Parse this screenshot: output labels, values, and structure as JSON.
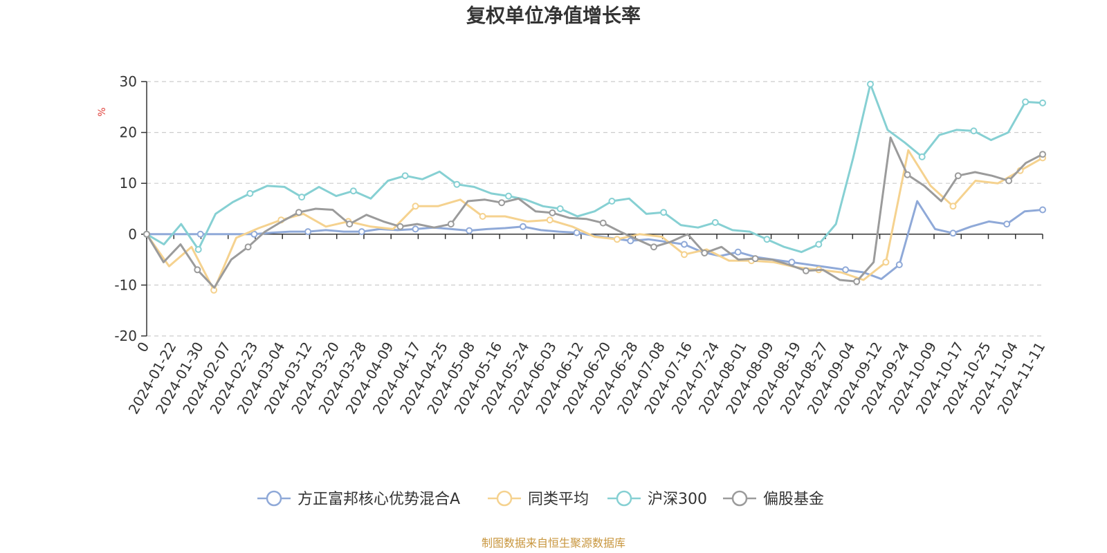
{
  "chart_data": {
    "type": "line",
    "title": "复权单位净值增长率",
    "ylabel": "%",
    "ylim": [
      -20,
      30
    ],
    "yticks": [
      "30",
      "20",
      "10",
      "0",
      "-10",
      "-20"
    ],
    "x_tick_labels": [
      "0",
      "2024-01-22",
      "2024-01-30",
      "2024-02-07",
      "2024-02-23",
      "2024-03-04",
      "2024-03-12",
      "2024-03-20",
      "2024-03-28",
      "2024-04-09",
      "2024-04-17",
      "2024-04-25",
      "2024-05-08",
      "2024-05-16",
      "2024-05-24",
      "2024-06-03",
      "2024-06-12",
      "2024-06-20",
      "2024-06-28",
      "2024-07-08",
      "2024-07-16",
      "2024-07-24",
      "2024-08-01",
      "2024-08-09",
      "2024-08-19",
      "2024-08-27",
      "2024-09-04",
      "2024-09-12",
      "2024-09-24",
      "2024-10-09",
      "2024-10-17",
      "2024-10-25",
      "2024-11-04",
      "2024-11-11"
    ],
    "series": [
      {
        "name": "方正富邦核心优势混合A",
        "color": "#8fa9d8",
        "values": [
          0,
          0,
          0,
          0,
          0,
          0,
          0,
          0.3,
          0.5,
          0.5,
          0.8,
          0.5,
          0.5,
          1.0,
          0.8,
          1.0,
          1.3,
          1.0,
          0.7,
          1.0,
          1.2,
          1.5,
          0.8,
          0.5,
          0.3,
          -0.3,
          -0.8,
          -1.3,
          -1.0,
          -1.5,
          -2.0,
          -3.5,
          -4.3,
          -3.5,
          -4.5,
          -5.0,
          -5.5,
          -6.0,
          -6.5,
          -7.0,
          -7.5,
          -8.8,
          -6.0,
          6.5,
          1.0,
          0.2,
          1.5,
          2.5,
          2.0,
          4.5,
          4.8
        ]
      },
      {
        "name": "同类平均",
        "color": "#f5d28f",
        "values": [
          0,
          -6.3,
          -2.5,
          -11.0,
          -0.7,
          1.2,
          2.8,
          4.0,
          1.5,
          2.5,
          1.5,
          1.0,
          5.5,
          5.5,
          6.8,
          3.5,
          3.5,
          2.5,
          2.8,
          1.5,
          -0.5,
          -1.0,
          0,
          -0.5,
          -4.0,
          -3.0,
          -5.2,
          -5.2,
          -5.5,
          -6.5,
          -7.0,
          -7.5,
          -9.0,
          -5.5,
          16.5,
          9.5,
          5.5,
          10.5,
          10.0,
          12.5,
          15.0
        ]
      },
      {
        "name": "沪深300",
        "color": "#86d0d3",
        "values": [
          0,
          -2.0,
          2.0,
          -3.0,
          4.0,
          6.3,
          8.0,
          9.5,
          9.3,
          7.3,
          9.3,
          7.5,
          8.5,
          7.0,
          10.5,
          11.5,
          10.8,
          12.3,
          9.8,
          9.3,
          8.0,
          7.5,
          6.8,
          5.5,
          5.0,
          3.5,
          4.5,
          6.5,
          7.0,
          4.0,
          4.3,
          1.8,
          1.3,
          2.3,
          0.8,
          0.5,
          -1.0,
          -2.5,
          -3.5,
          -2.0,
          2.0,
          15.0,
          29.5,
          20.5,
          18.0,
          15.2,
          19.5,
          20.5,
          20.3,
          18.5,
          20.0,
          26.0,
          25.8
        ]
      },
      {
        "name": "偏股基金",
        "color": "#9b9b9b",
        "values": [
          0,
          -5.5,
          -2.0,
          -7.0,
          -10.5,
          -5.0,
          -2.5,
          0.5,
          2.5,
          4.3,
          5.0,
          4.8,
          2.0,
          3.8,
          2.5,
          1.5,
          2.0,
          1.3,
          2.0,
          6.5,
          6.8,
          6.2,
          7.0,
          4.5,
          4.2,
          3.2,
          3.0,
          2.2,
          0.5,
          -1.0,
          -2.5,
          -1.5,
          0,
          -3.7,
          -2.5,
          -5.0,
          -4.8,
          -5.0,
          -6.0,
          -7.2,
          -7.0,
          -9.0,
          -9.3,
          -5.5,
          19.0,
          11.7,
          9.5,
          6.5,
          11.5,
          12.2,
          11.5,
          10.5,
          14.0,
          15.7
        ]
      }
    ],
    "legend_position": "bottom-center",
    "source": "制图数据来自恒生聚源数据库"
  }
}
